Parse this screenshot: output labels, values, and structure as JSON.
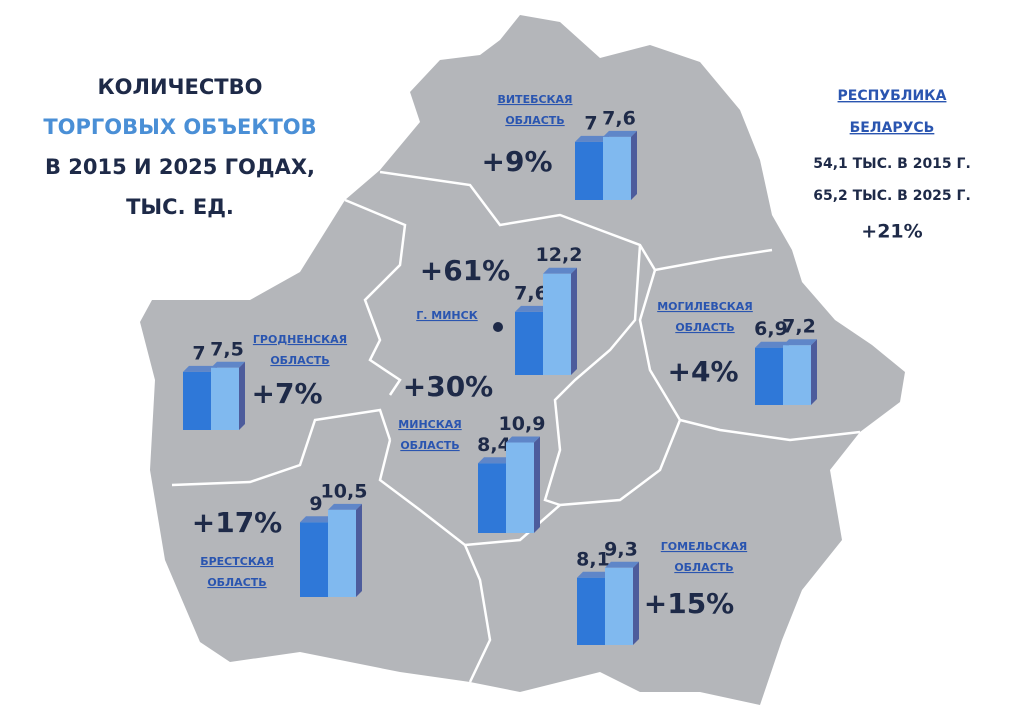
{
  "title": {
    "line1": "КОЛИЧЕСТВО",
    "line2": "ТОРГОВЫХ ОБЪЕКТОВ",
    "line3": "В 2015 И 2025 ГОДАХ,",
    "line4": "ТЫС. ЕД."
  },
  "republic": {
    "name_line1": "РЕСПУБЛИКА",
    "name_line2": "БЕЛАРУСЬ",
    "line_2015": "54,1 ТЫС. В 2015 Г.",
    "line_2025": "65,2 ТЫС. В 2025 Г.",
    "change": "+21%"
  },
  "regions": [
    {
      "name": [
        "ВИТЕБСКАЯ",
        "ОБЛАСТЬ"
      ],
      "values": [
        7,
        7.6
      ],
      "value_labels": [
        "7",
        "7,6"
      ],
      "change": "+9%"
    },
    {
      "name": [
        "Г. МИНСК"
      ],
      "values": [
        7.6,
        12.2
      ],
      "value_labels": [
        "7,6",
        "12,2"
      ],
      "change": "+61%"
    },
    {
      "name": [
        "ГРОДНЕНСКАЯ",
        "ОБЛАСТЬ"
      ],
      "values": [
        7,
        7.5
      ],
      "value_labels": [
        "7",
        "7,5"
      ],
      "change": "+7%"
    },
    {
      "name": [
        "МОГИЛЕВСКАЯ",
        "ОБЛАСТЬ"
      ],
      "values": [
        6.9,
        7.2
      ],
      "value_labels": [
        "6,9",
        "7,2"
      ],
      "change": "+4%"
    },
    {
      "name": [
        "МИНСКАЯ",
        "ОБЛАСТЬ"
      ],
      "values": [
        8.4,
        10.9
      ],
      "value_labels": [
        "8,4",
        "10,9"
      ],
      "change": "+30%"
    },
    {
      "name": [
        "БРЕСТСКАЯ",
        "ОБЛАСТЬ"
      ],
      "values": [
        9,
        10.5
      ],
      "value_labels": [
        "9",
        "10,5"
      ],
      "change": "+17%"
    },
    {
      "name": [
        "ГОМЕЛЬСКАЯ",
        "ОБЛАСТЬ"
      ],
      "values": [
        8.1,
        9.3
      ],
      "value_labels": [
        "8,1",
        "9,3"
      ],
      "change": "+15%"
    }
  ]
}
